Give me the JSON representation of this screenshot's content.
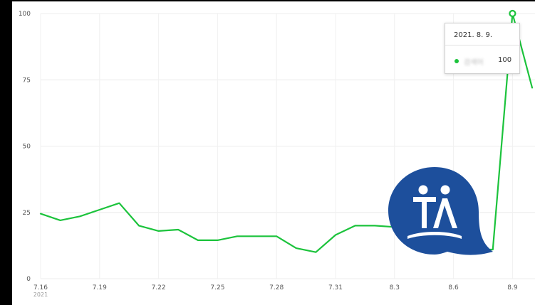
{
  "chart_data": {
    "type": "line",
    "x": [
      "7.16",
      "7.17",
      "7.18",
      "7.19",
      "7.20",
      "7.21",
      "7.22",
      "7.23",
      "7.24",
      "7.25",
      "7.26",
      "7.27",
      "7.28",
      "7.29",
      "7.30",
      "7.31",
      "8.1",
      "8.2",
      "8.3",
      "8.4",
      "8.5",
      "8.6",
      "8.7",
      "8.8",
      "8.9",
      "8.10"
    ],
    "x_tick_labels": [
      "7.16",
      "7.19",
      "7.22",
      "7.25",
      "7.28",
      "7.31",
      "8.3",
      "8.6",
      "8.9"
    ],
    "x_year_label": "2021",
    "series": [
      {
        "values": [
          24.5,
          22,
          23.5,
          26,
          28.5,
          20,
          18,
          18.5,
          14.5,
          14.5,
          16,
          16,
          16,
          11.5,
          10,
          16.5,
          20,
          20,
          19.5,
          17,
          12,
          11,
          11,
          11,
          100,
          72
        ]
      }
    ],
    "y_ticks": [
      0,
      25,
      50,
      75,
      100
    ],
    "ylim": [
      0,
      100
    ],
    "grid": true,
    "line_color": "#1cc33c",
    "highlight_index": 24,
    "tooltip": {
      "date": "2021. 8. 9.",
      "series_name": "검색어",
      "value": "100"
    }
  },
  "logo": {
    "name": "TA-logo",
    "background": "#1d4f9c"
  }
}
